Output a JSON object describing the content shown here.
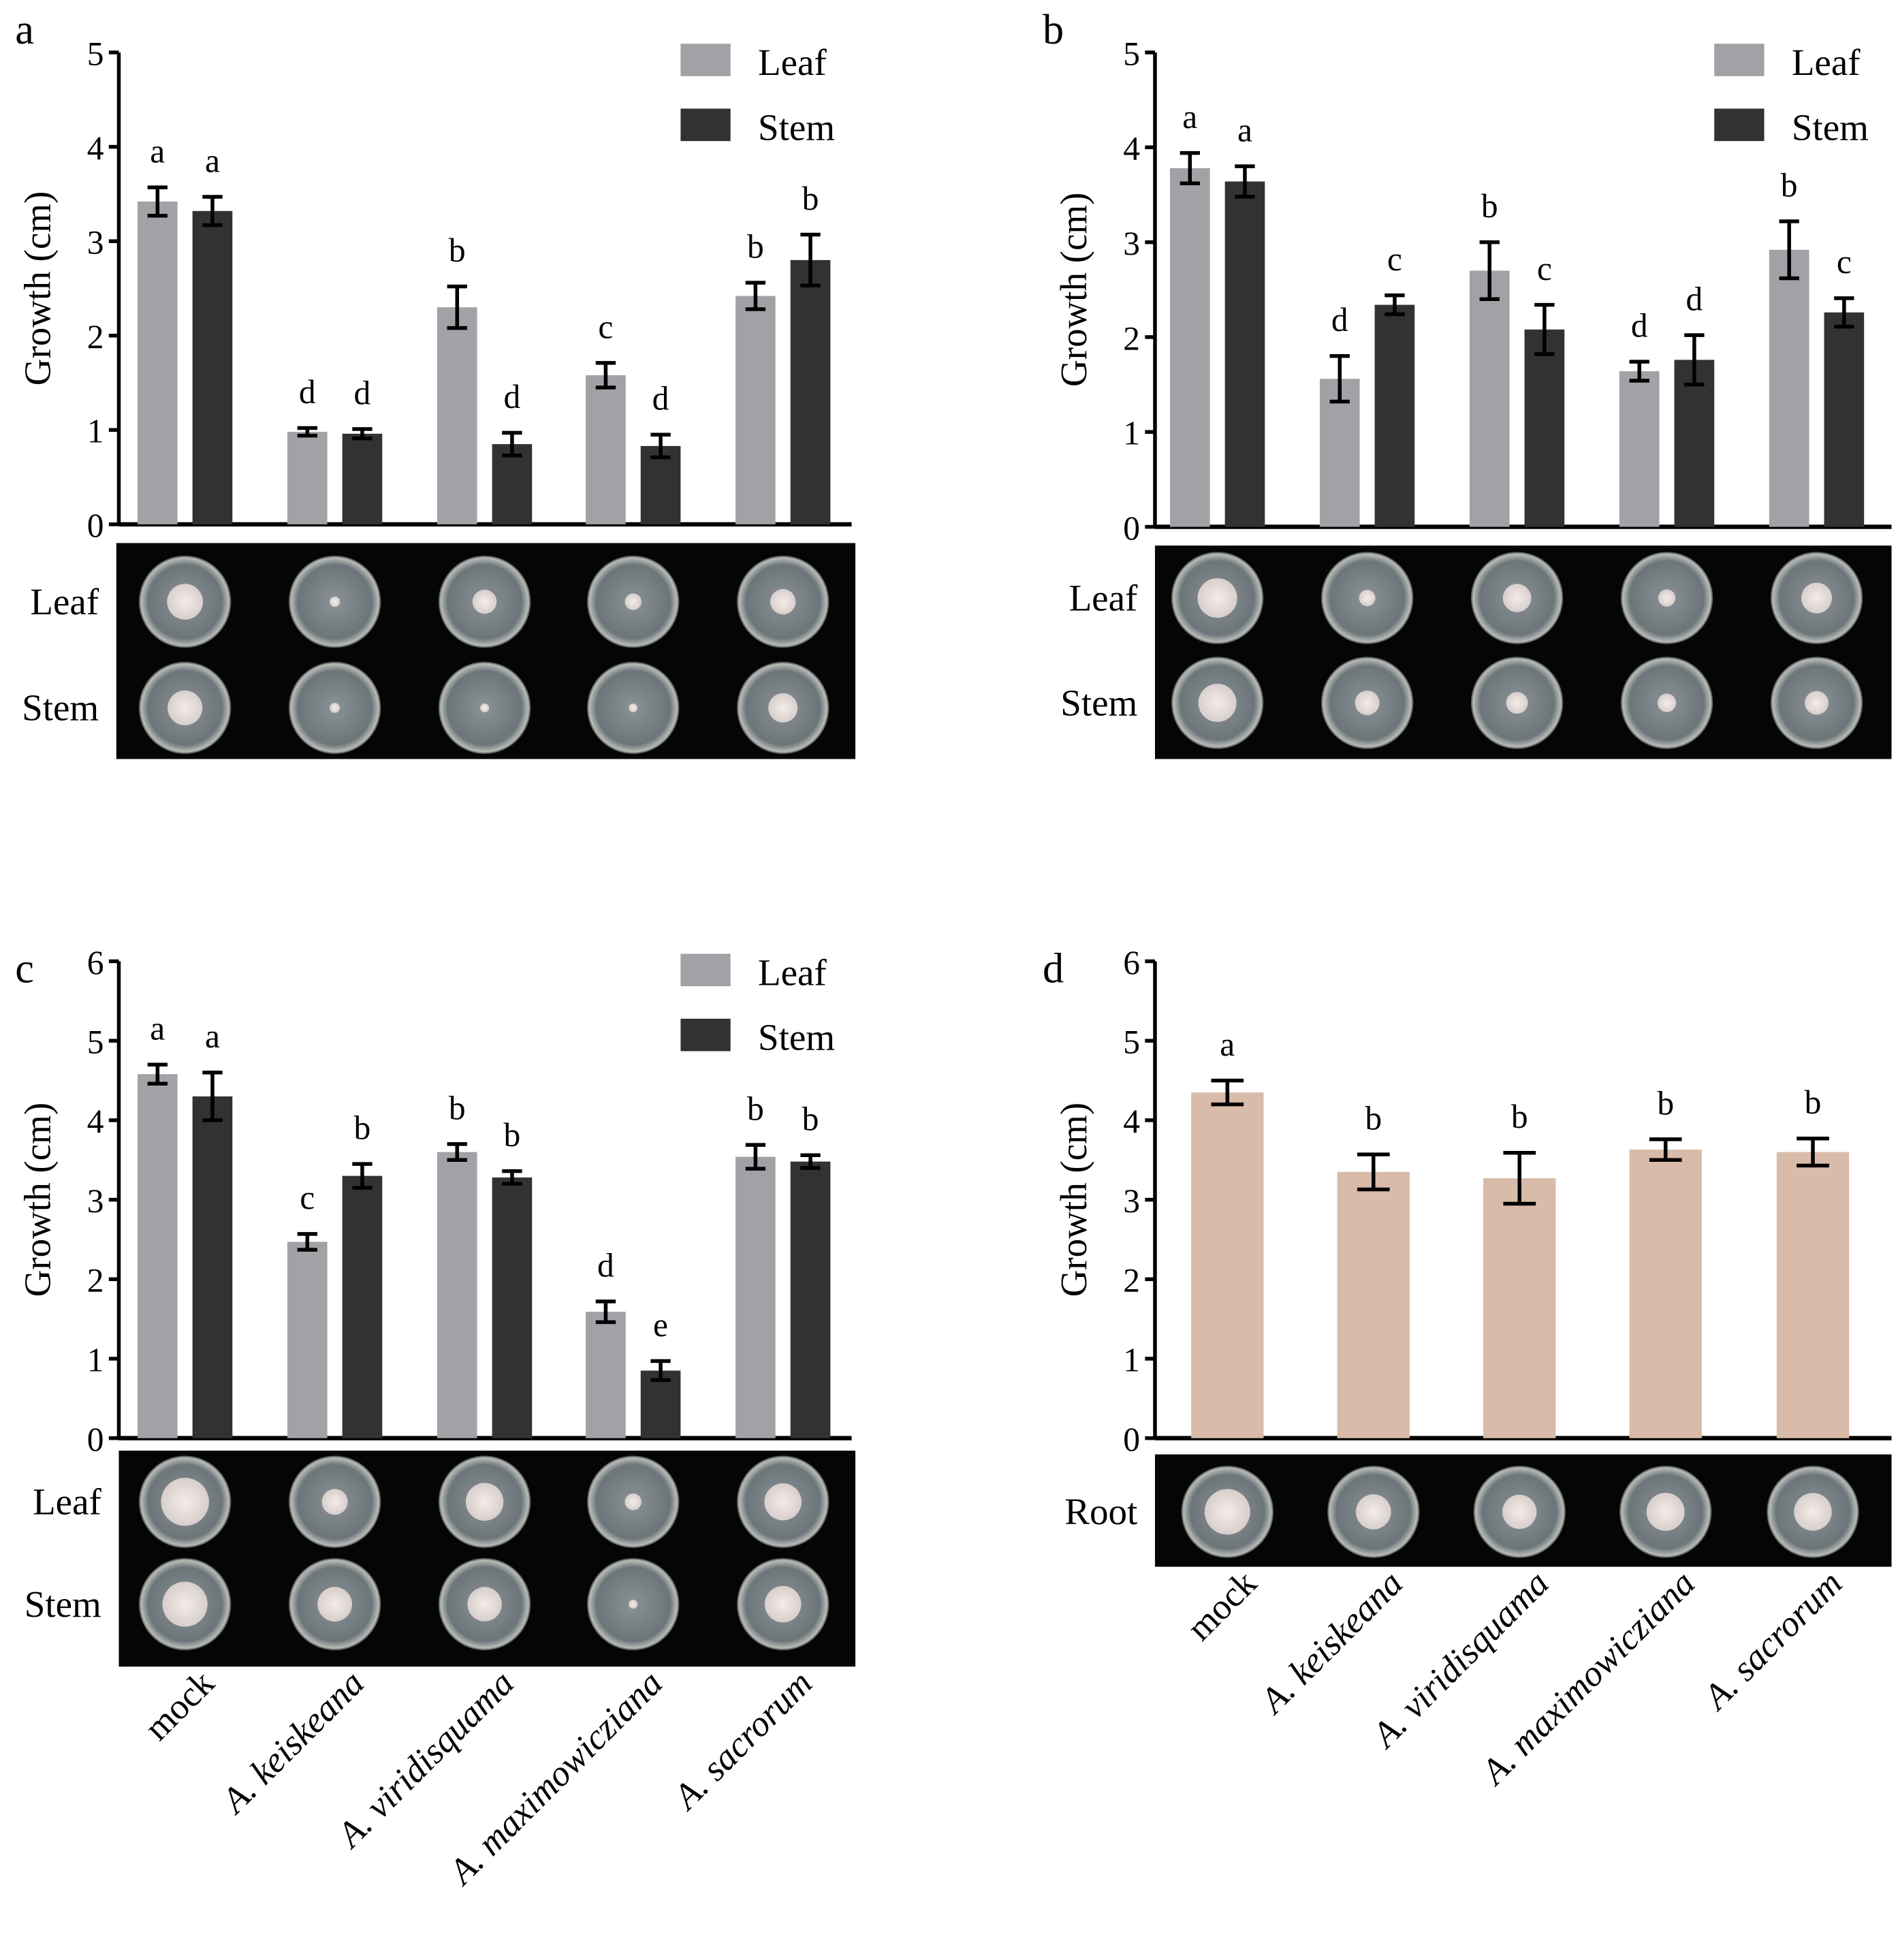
{
  "colors": {
    "leaf": "#a2a1a6",
    "stem": "#313332",
    "root": "#d8bba8",
    "photo_bg": "#050505"
  },
  "categories": [
    "mock",
    "A. keiskeana",
    "A. viridisquama",
    "A. maximowicziana",
    "A. sacrorum"
  ],
  "chart_data": [
    {
      "type": "bar",
      "panel": "a",
      "ylabel": "Growth (cm)",
      "ylim": [
        0,
        5
      ],
      "yticks": [
        0,
        1,
        2,
        3,
        4,
        5
      ],
      "legend": "top-right",
      "categories": [
        "mock",
        "A. keiskeana",
        "A. viridisquama",
        "A. maximowicziana",
        "A. sacrorum"
      ],
      "series": [
        {
          "name": "Leaf",
          "values": [
            3.42,
            0.98,
            2.3,
            1.58,
            2.42
          ],
          "errors": [
            0.15,
            0.04,
            0.22,
            0.13,
            0.14
          ],
          "letters": [
            "a",
            "d",
            "b",
            "c",
            "b"
          ]
        },
        {
          "name": "Stem",
          "values": [
            3.32,
            0.96,
            0.85,
            0.83,
            2.8
          ],
          "errors": [
            0.15,
            0.05,
            0.12,
            0.12,
            0.27
          ],
          "letters": [
            "a",
            "d",
            "d",
            "d",
            "b"
          ]
        }
      ],
      "photo_rows": [
        "Leaf",
        "Stem"
      ]
    },
    {
      "type": "bar",
      "panel": "b",
      "ylabel": "Growth (cm)",
      "ylim": [
        0,
        5
      ],
      "yticks": [
        0,
        1,
        2,
        3,
        4,
        5
      ],
      "legend": "top-right",
      "categories": [
        "mock",
        "A. keiskeana",
        "A. viridisquama",
        "A. maximowicziana",
        "A. sacrorum"
      ],
      "series": [
        {
          "name": "Leaf",
          "values": [
            3.78,
            1.56,
            2.7,
            1.64,
            2.92
          ],
          "errors": [
            0.16,
            0.24,
            0.3,
            0.1,
            0.3
          ],
          "letters": [
            "a",
            "d",
            "b",
            "d",
            "b"
          ]
        },
        {
          "name": "Stem",
          "values": [
            3.64,
            2.34,
            2.08,
            1.76,
            2.26
          ],
          "errors": [
            0.16,
            0.1,
            0.26,
            0.26,
            0.15
          ],
          "letters": [
            "a",
            "c",
            "c",
            "d",
            "c"
          ]
        }
      ],
      "photo_rows": [
        "Leaf",
        "Stem"
      ]
    },
    {
      "type": "bar",
      "panel": "c",
      "ylabel": "Growth (cm)",
      "ylim": [
        0,
        6
      ],
      "yticks": [
        0,
        1,
        2,
        3,
        4,
        5,
        6
      ],
      "legend": "top-right",
      "categories": [
        "mock",
        "A. keiskeana",
        "A. viridisquama",
        "A. maximowicziana",
        "A. sacrorum"
      ],
      "series": [
        {
          "name": "Leaf",
          "values": [
            4.58,
            2.47,
            3.6,
            1.59,
            3.54
          ],
          "errors": [
            0.12,
            0.1,
            0.1,
            0.13,
            0.15
          ],
          "letters": [
            "a",
            "c",
            "b",
            "d",
            "b"
          ]
        },
        {
          "name": "Stem",
          "values": [
            4.3,
            3.3,
            3.28,
            0.85,
            3.48
          ],
          "errors": [
            0.3,
            0.15,
            0.08,
            0.12,
            0.08
          ],
          "letters": [
            "a",
            "b",
            "b",
            "e",
            "b"
          ]
        }
      ],
      "photo_rows": [
        "Leaf",
        "Stem"
      ]
    },
    {
      "type": "bar",
      "panel": "d",
      "ylabel": "Growth (cm)",
      "ylim": [
        0,
        6
      ],
      "yticks": [
        0,
        1,
        2,
        3,
        4,
        5,
        6
      ],
      "categories": [
        "mock",
        "A. keiskeana",
        "A. viridisquama",
        "A. maximowicziana",
        "A. sacrorum"
      ],
      "series": [
        {
          "values": [
            4.35,
            3.35,
            3.27,
            3.63,
            3.6
          ],
          "errors": [
            0.15,
            0.22,
            0.32,
            0.13,
            0.17
          ],
          "letters": [
            "a",
            "b",
            "b",
            "b",
            "b"
          ]
        }
      ],
      "photo_rows": [
        "Root"
      ]
    }
  ]
}
